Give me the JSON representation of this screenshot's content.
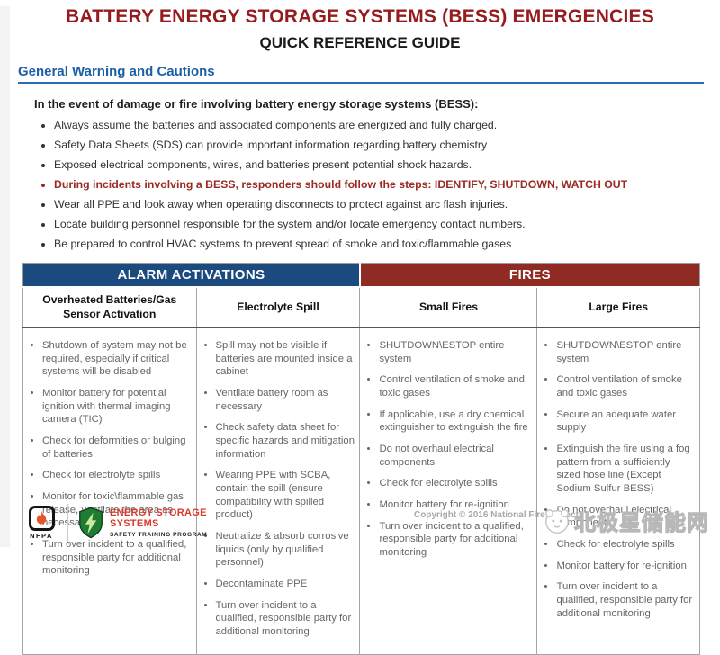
{
  "header": {
    "title": "BATTERY ENERGY STORAGE SYSTEMS (BESS) EMERGENCIES",
    "subtitle": "QUICK REFERENCE GUIDE"
  },
  "warnings": {
    "heading": "General Warning and Cautions",
    "intro": "In the event of damage or fire involving battery energy storage systems (BESS):",
    "bullets": [
      {
        "text": "Always assume the batteries and associated components are energized and fully charged.",
        "emphasis": false
      },
      {
        "text": "Safety Data Sheets (SDS) can provide important information regarding battery chemistry",
        "emphasis": false
      },
      {
        "text": "Exposed electrical components, wires, and batteries present potential shock hazards.",
        "emphasis": false
      },
      {
        "text": "During incidents involving a BESS, responders should follow the steps: IDENTIFY, SHUTDOWN, WATCH OUT",
        "emphasis": true
      },
      {
        "text": "Wear all PPE and look away when operating disconnects to protect against arc flash injuries.",
        "emphasis": false
      },
      {
        "text": "Locate building personnel responsible for the system and/or locate emergency contact numbers.",
        "emphasis": false
      },
      {
        "text": "Be prepared to control HVAC systems to prevent spread of smoke and toxic/flammable gases",
        "emphasis": false
      }
    ]
  },
  "table": {
    "groups": [
      {
        "label": "ALARM ACTIVATIONS",
        "color": "#1b4a7e",
        "span": 2
      },
      {
        "label": "FIRES",
        "color": "#8f2b22",
        "span": 2
      }
    ],
    "columns": [
      {
        "header": "Overheated Batteries/Gas Sensor Activation",
        "items": [
          "Shutdown of system may not be required, especially if critical systems will be disabled",
          "Monitor battery for potential ignition with thermal imaging camera (TIC)",
          "Check for deformities or bulging of batteries",
          "Check for electrolyte spills",
          "Monitor for toxic\\flammable gas release, ventilate the area as necessary",
          "Turn over incident to a qualified, responsible party for additional monitoring"
        ]
      },
      {
        "header": "Electrolyte Spill",
        "items": [
          "Spill may not be visible if batteries are mounted inside a cabinet",
          "Ventilate battery room as necessary",
          "Check safety data sheet for specific hazards and mitigation information",
          "Wearing PPE with SCBA, contain the spill (ensure compatibility with spilled product)",
          "Neutralize & absorb corrosive liquids (only by qualified personnel)",
          "Decontaminate PPE",
          "Turn over incident to a qualified, responsible party for additional monitoring"
        ]
      },
      {
        "header": "Small Fires",
        "items": [
          "SHUTDOWN\\ESTOP entire system",
          "Control ventilation of smoke and toxic gases",
          "If applicable, use a dry chemical extinguisher to extinguish the fire",
          "Do not overhaul electrical components",
          "Check for electrolyte spills",
          "Monitor battery for re-ignition",
          "Turn over incident to a qualified, responsible party for additional monitoring"
        ]
      },
      {
        "header": "Large Fires",
        "items": [
          "SHUTDOWN\\ESTOP entire system",
          "Control ventilation of smoke and toxic gases",
          "Secure an adequate water supply",
          "Extinguish the fire using a fog pattern from a sufficiently sized hose line (Except Sodium Sulfur BESS)",
          "Do not overhaul electrical components",
          "Check for electrolyte spills",
          "Monitor battery for re-ignition",
          "Turn over incident to a qualified, responsible party for additional monitoring"
        ]
      }
    ]
  },
  "footer": {
    "nfpa_label": "NFPA",
    "program_title_line1": "ENERGY STORAGE",
    "program_title_line2": "SYSTEMS",
    "program_subtitle": "SAFETY TRAINING PROGRAM",
    "copyright_left": "Copyright © 2016 National Fire Protecti",
    "copyright_right": "rg",
    "watermark_text": "北极星储能网"
  },
  "colors": {
    "title_red": "#951b1e",
    "section_blue": "#1c5fa5",
    "alarm_header_bg": "#1b4a7e",
    "fires_header_bg": "#8f2b22",
    "emphasis_red": "#9a2a23",
    "nfpa_flame_orange": "#e8542a",
    "program_red": "#d93a2b",
    "shield_green": "#1e7c33",
    "watermark_gray": "#b8b8b8"
  }
}
